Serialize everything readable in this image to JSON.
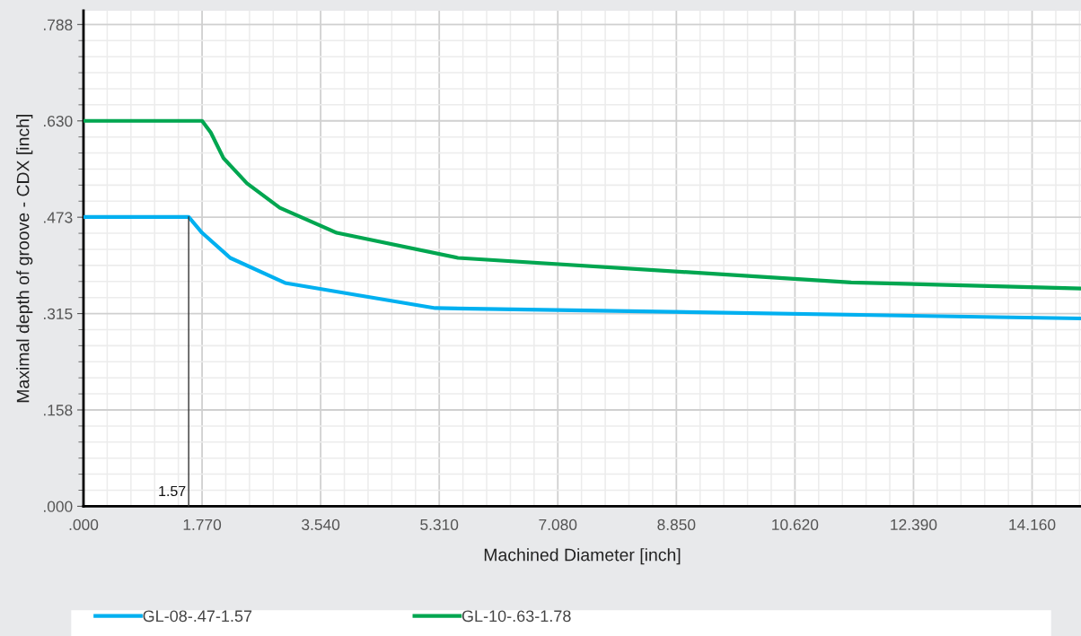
{
  "chart_data": {
    "type": "line",
    "xlabel": "Machined Diameter [inch]",
    "ylabel": "Maximal depth of groove - CDX [inch]",
    "xlim": [
      0,
      14.89
    ],
    "ylim": [
      0,
      0.81
    ],
    "xticks": [
      {
        "value": 0,
        "label": ".000"
      },
      {
        "value": 1.77,
        "label": "1.770"
      },
      {
        "value": 3.54,
        "label": "3.540"
      },
      {
        "value": 5.31,
        "label": "5.310"
      },
      {
        "value": 7.08,
        "label": "7.080"
      },
      {
        "value": 8.85,
        "label": "8.850"
      },
      {
        "value": 10.62,
        "label": "10.620"
      },
      {
        "value": 12.39,
        "label": "12.390"
      },
      {
        "value": 14.16,
        "label": "14.160"
      }
    ],
    "yticks": [
      {
        "value": 0,
        "label": ".000"
      },
      {
        "value": 0.1575,
        "label": ".158"
      },
      {
        "value": 0.315,
        "label": ".315"
      },
      {
        "value": 0.4725,
        "label": ".473"
      },
      {
        "value": 0.63,
        "label": ".630"
      },
      {
        "value": 0.7875,
        "label": ".788"
      }
    ],
    "grid": true,
    "legend": "bottom",
    "marker": "none",
    "line_style": "solid",
    "series": [
      {
        "name": "GL-08-.47-1.57",
        "color": "#00b0f0",
        "x": [
          0,
          1.57,
          1.77,
          2.19,
          3.01,
          5.25,
          14.89
        ],
        "values": [
          0.473,
          0.473,
          0.447,
          0.406,
          0.365,
          0.324,
          0.307
        ]
      },
      {
        "name": "GL-10-.63-1.78",
        "color": "#00a650",
        "x": [
          0,
          1.77,
          1.9,
          2.09,
          2.44,
          2.93,
          3.78,
          5.59,
          11.46,
          14.89
        ],
        "values": [
          0.63,
          0.63,
          0.611,
          0.569,
          0.528,
          0.488,
          0.447,
          0.406,
          0.366,
          0.356
        ]
      }
    ],
    "ref_lines": [
      {
        "axis": "x",
        "value": 1.57,
        "label": "1.57",
        "color": "#333333"
      }
    ]
  }
}
